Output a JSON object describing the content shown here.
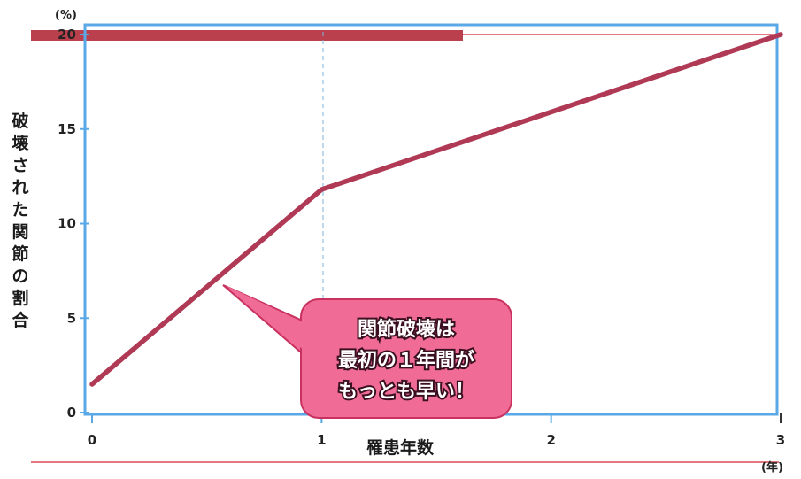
{
  "chart_data": {
    "type": "line",
    "x": [
      0,
      1,
      3
    ],
    "series": [
      {
        "values": [
          1.5,
          11.8,
          20
        ]
      }
    ],
    "xlim": [
      0,
      3
    ],
    "ylim": [
      0,
      20
    ],
    "xticks": [
      "0",
      "1",
      "2",
      "3"
    ],
    "yticks": [
      "0",
      "5",
      "10",
      "15",
      "20"
    ],
    "xlabel": "罹患年数",
    "ylabel": "破壊された関節の割合",
    "xunit": "(年)",
    "yunit": "(%)",
    "annotation": {
      "lines": [
        "関節破壊は",
        "最初の１年間が",
        "もっとも早い！"
      ]
    },
    "colors": {
      "line": "#b03a56",
      "frame": "#5aa9e6",
      "callout_fill": "#f06b96",
      "callout_border": "#c9325f",
      "top_bar": "#b9404c",
      "rule": "#d94a54"
    }
  }
}
